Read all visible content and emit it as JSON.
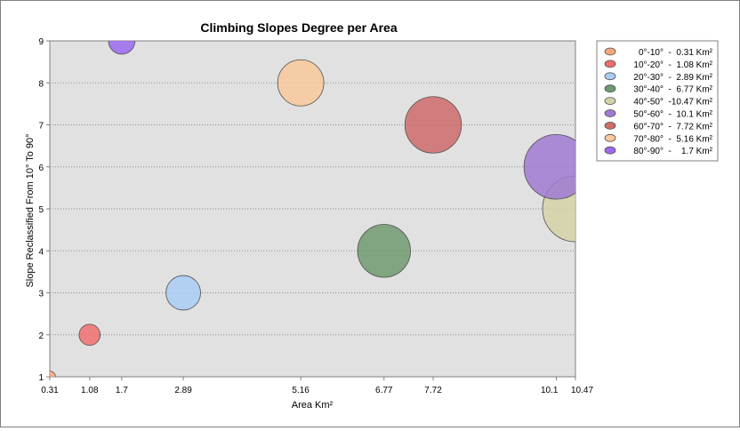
{
  "chart_data": {
    "type": "scatter",
    "title": "Climbing Slopes Degree per Area",
    "xlabel": "Area Km²",
    "ylabel": "Slope Reclassified From 10° To 90°",
    "xlim": [
      0.31,
      10.47
    ],
    "ylim": [
      1,
      9
    ],
    "x_ticks": [
      "0.31",
      "1.08",
      "1.7",
      "2.89",
      "5.16",
      "6.77",
      "7.72",
      "10.1",
      "10.47"
    ],
    "y_ticks": [
      "1",
      "2",
      "3",
      "4",
      "5",
      "6",
      "7",
      "8",
      "9"
    ],
    "grid": "horizontal dotted",
    "legend_position": "right",
    "bubble_size": "proportional to area",
    "series": [
      {
        "name": "0°-10°  -  0.31 Km²",
        "x": 0.31,
        "y": 1,
        "size": 0.31,
        "color": "#F4A77A"
      },
      {
        "name": "10°-20°  -  1.08 Km²",
        "x": 1.08,
        "y": 2,
        "size": 1.08,
        "color": "#EE6E6E"
      },
      {
        "name": "20°-30°  -  2.89 Km²",
        "x": 2.89,
        "y": 3,
        "size": 2.89,
        "color": "#A8CCF4"
      },
      {
        "name": "30°-40°  -  6.77 Km²",
        "x": 6.77,
        "y": 4,
        "size": 6.77,
        "color": "#6E9A6E"
      },
      {
        "name": "40°-50°  -10.47 Km²",
        "x": 10.47,
        "y": 5,
        "size": 10.47,
        "color": "#D4D2A6"
      },
      {
        "name": "50°-60°  -  10.1 Km²",
        "x": 10.1,
        "y": 6,
        "size": 10.1,
        "color": "#A07AD2"
      },
      {
        "name": "60°-70°  -  7.72 Km²",
        "x": 7.72,
        "y": 7,
        "size": 7.72,
        "color": "#CF6B6B"
      },
      {
        "name": "70°-80°  -  5.16 Km²",
        "x": 5.16,
        "y": 8,
        "size": 5.16,
        "color": "#F8C89A"
      },
      {
        "name": "80°-90°  -    1.7 Km²",
        "x": 1.7,
        "y": 9,
        "size": 1.7,
        "color": "#9B6AEE"
      }
    ]
  }
}
